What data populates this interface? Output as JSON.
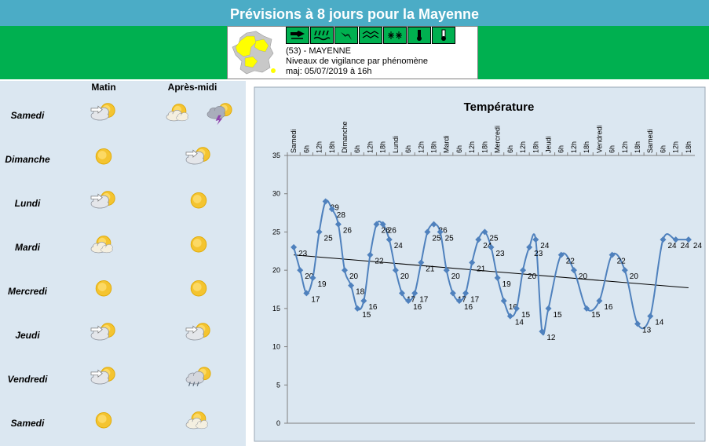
{
  "header": {
    "title": "Prévisions à 8 jours pour la Mayenne",
    "dept": "(53) - MAYENNE",
    "subtitle": "Niveaux de vigilance par phénomène",
    "updated": "maj: 05/07/2019 à 16h",
    "vigilance_color": "#00b050",
    "vigilance_icons": [
      "wind-icon",
      "rain-flood-icon",
      "thunder-icon",
      "wave-icon",
      "snow-ice-icon",
      "heat-icon",
      "cold-icon"
    ]
  },
  "forecast": {
    "morning_label": "Matin",
    "afternoon_label": "Après-midi",
    "days": [
      {
        "name": "Samedi",
        "morning": "cloudy-sun",
        "afternoon": [
          "partly-sunny-light",
          "storm"
        ]
      },
      {
        "name": "Dimanche",
        "morning": "sun",
        "afternoon": [
          "cloudy-sun"
        ]
      },
      {
        "name": "Lundi",
        "morning": "cloudy-sun",
        "afternoon": [
          "sun"
        ]
      },
      {
        "name": "Mardi",
        "morning": "partly-sunny-light",
        "afternoon": [
          "sun"
        ]
      },
      {
        "name": "Mercredi",
        "morning": "sun",
        "afternoon": [
          "sun"
        ]
      },
      {
        "name": "Jeudi",
        "morning": "cloudy-sun",
        "afternoon": [
          "cloudy-sun"
        ]
      },
      {
        "name": "Vendredi",
        "morning": "cloudy-sun",
        "afternoon": [
          "rain-sun"
        ]
      },
      {
        "name": "Samedi",
        "morning": "sun",
        "afternoon": [
          "partly-sunny-light"
        ]
      }
    ]
  },
  "chart_data": {
    "type": "line",
    "title": "Température",
    "ylim": [
      0,
      35
    ],
    "yticks": [
      0,
      5,
      10,
      15,
      20,
      25,
      30,
      35
    ],
    "x_tick_labels": [
      "Samedi",
      "6h",
      "12h",
      "18h",
      "Dimanche",
      "6h",
      "12h",
      "18h",
      "Lundi",
      "6h",
      "12h",
      "18h",
      "Mardi",
      "6h",
      "12h",
      "18h",
      "Mercredi",
      "6h",
      "12h",
      "18h",
      "Jeudi",
      "6h",
      "12h",
      "18h",
      "Vendredi",
      "6h",
      "12h",
      "18h",
      "Samedi",
      "6h",
      "12h",
      "18h"
    ],
    "series": [
      {
        "x": [
          0,
          0.5,
          1,
          1.5,
          2,
          2.5,
          3,
          3.5,
          4,
          4.5,
          5,
          5.5,
          6,
          6.5,
          7,
          7.5,
          8,
          8.5,
          9,
          9.5,
          10,
          10.5,
          11,
          11.5,
          12,
          12.5,
          13,
          13.5,
          14,
          14.5,
          15,
          15.5,
          16,
          16.5,
          17,
          17.5,
          18,
          18.5,
          19,
          19.5,
          20,
          21,
          22,
          23,
          24,
          25,
          26,
          27,
          28,
          29,
          30,
          31
        ],
        "values": [
          23,
          20,
          17,
          19,
          25,
          29,
          28,
          26,
          20,
          18,
          15,
          16,
          22,
          26,
          26,
          24,
          20,
          17,
          16,
          17,
          21,
          25,
          26,
          25,
          20,
          17,
          16,
          17,
          21,
          24,
          25,
          23,
          19,
          16,
          14,
          15,
          20,
          23,
          24,
          12,
          15,
          22,
          20,
          15,
          16,
          22,
          20,
          13,
          14,
          24,
          24,
          24
        ],
        "labels": [
          "23",
          "20",
          "17",
          "19",
          "25",
          "29",
          "28",
          "26",
          "20",
          "18",
          "15",
          "16",
          "22",
          "26",
          "26",
          "24",
          "20",
          "17",
          "16",
          "17",
          "21",
          "25",
          "26",
          "25",
          "20",
          "17",
          "16",
          "17",
          "21",
          "24",
          "25",
          "23",
          "19",
          "16",
          "14",
          "15",
          "20",
          "23",
          "24",
          "12",
          "15",
          "22",
          "20",
          "15",
          "16",
          "22",
          "20",
          "13",
          "14",
          "24",
          "24",
          "24"
        ],
        "color": "#4f81bd"
      }
    ],
    "trendline": {
      "from": 22,
      "to": 17.7,
      "color": "#000000"
    },
    "grid": false,
    "legend": "none"
  }
}
